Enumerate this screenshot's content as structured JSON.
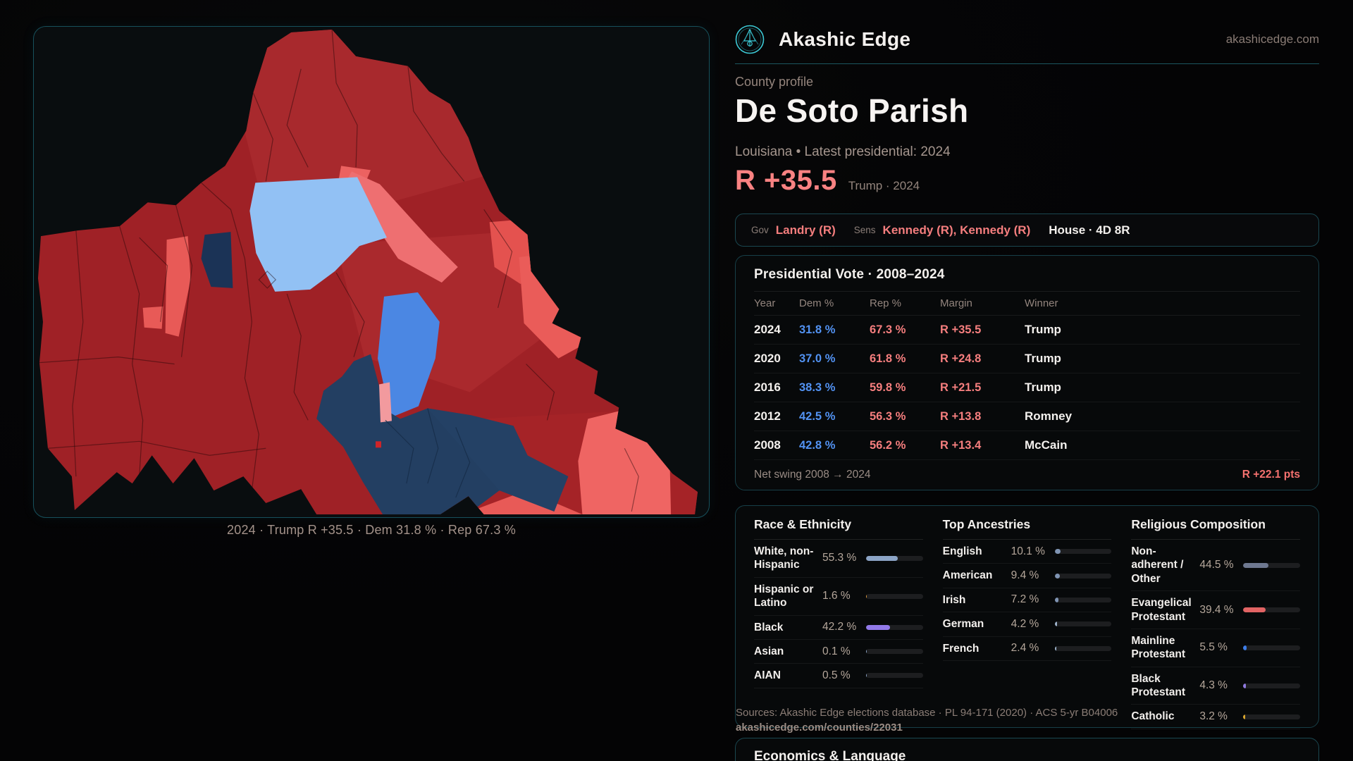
{
  "brand": {
    "name": "Akashic Edge",
    "domain": "akashicedge.com",
    "accent_teal": "#3cc8d4"
  },
  "map": {
    "caption": "2024 · Trump R +35.5 · Dem 31.8 % · Rep 67.3 %",
    "palette": {
      "rep_dark": "#9f2126",
      "rep_mid": "#a92a2f",
      "rep_light": "#ec6261",
      "rep_pale": "#f29a9e",
      "dem_light": "#92c1f4",
      "dem_mid": "#4b87e3",
      "dem_dark": "#233f62"
    }
  },
  "profile": {
    "kicker": "County profile",
    "title": "De Soto Parish",
    "subtitle": "Louisiana • Latest presidential: 2024",
    "margin_value": "R +35.5",
    "margin_note": "Trump · 2024"
  },
  "officials": {
    "gov_label": "Gov",
    "gov_value": "Landry (R)",
    "sens_label": "Sens",
    "sens_value": "Kennedy (R), Kennedy (R)",
    "house_value": "House · 4D 8R"
  },
  "presidential": {
    "title": "Presidential Vote · 2008–2024",
    "columns": {
      "year": "Year",
      "dem": "Dem %",
      "rep": "Rep %",
      "margin": "Margin",
      "winner": "Winner"
    },
    "rows": [
      {
        "year": "2024",
        "dem": "31.8 %",
        "rep": "67.3 %",
        "margin": "R +35.5",
        "winner": "Trump"
      },
      {
        "year": "2020",
        "dem": "37.0 %",
        "rep": "61.8 %",
        "margin": "R +24.8",
        "winner": "Trump"
      },
      {
        "year": "2016",
        "dem": "38.3 %",
        "rep": "59.8 %",
        "margin": "R +21.5",
        "winner": "Trump"
      },
      {
        "year": "2012",
        "dem": "42.5 %",
        "rep": "56.3 %",
        "margin": "R +13.8",
        "winner": "Romney"
      },
      {
        "year": "2008",
        "dem": "42.8 %",
        "rep": "56.2 %",
        "margin": "R +13.4",
        "winner": "McCain"
      }
    ],
    "net_swing_label": "Net swing 2008 → 2024",
    "net_swing_value": "R +22.1 pts"
  },
  "demographics": {
    "race": {
      "title": "Race & Ethnicity",
      "rows": [
        {
          "label": "White, non-Hispanic",
          "value": "55.3 %",
          "pct": 55.3,
          "color": "#8ca4c6"
        },
        {
          "label": "Hispanic or Latino",
          "value": "1.6 %",
          "pct": 1.6,
          "color": "#e09b3d"
        },
        {
          "label": "Black",
          "value": "42.2 %",
          "pct": 42.2,
          "color": "#9179e8"
        },
        {
          "label": "Asian",
          "value": "0.1 %",
          "pct": 0.1,
          "color": "#8ca4c6"
        },
        {
          "label": "AIAN",
          "value": "0.5 %",
          "pct": 0.5,
          "color": "#8ca4c6"
        }
      ]
    },
    "ancestries": {
      "title": "Top Ancestries",
      "rows": [
        {
          "label": "English",
          "value": "10.1 %",
          "pct": 10.1,
          "color": "#7f94b3"
        },
        {
          "label": "American",
          "value": "9.4 %",
          "pct": 9.4,
          "color": "#7f94b3"
        },
        {
          "label": "Irish",
          "value": "7.2 %",
          "pct": 7.2,
          "color": "#7f94b3"
        },
        {
          "label": "German",
          "value": "4.2 %",
          "pct": 4.2,
          "color": "#9fb4cc"
        },
        {
          "label": "French",
          "value": "2.4 %",
          "pct": 2.4,
          "color": "#9fb4cc"
        }
      ]
    },
    "religion": {
      "title": "Religious Composition",
      "rows": [
        {
          "label": "Non-adherent / Other",
          "value": "44.5 %",
          "pct": 44.5,
          "color": "#6e7890"
        },
        {
          "label": "Evangelical Protestant",
          "value": "39.4 %",
          "pct": 39.4,
          "color": "#e26464"
        },
        {
          "label": "Mainline Protestant",
          "value": "5.5 %",
          "pct": 5.5,
          "color": "#3d7de8"
        },
        {
          "label": "Black Protestant",
          "value": "4.3 %",
          "pct": 4.3,
          "color": "#8f7ae0"
        },
        {
          "label": "Catholic",
          "value": "3.2 %",
          "pct": 3.2,
          "color": "#d9a52e"
        }
      ]
    }
  },
  "sources": {
    "line1": "Sources: Akashic Edge elections database · PL 94-171 (2020) · ACS 5-yr B04006",
    "line2": "akashicedge.com/counties/22031"
  },
  "economics": {
    "title": "Economics & Language"
  }
}
